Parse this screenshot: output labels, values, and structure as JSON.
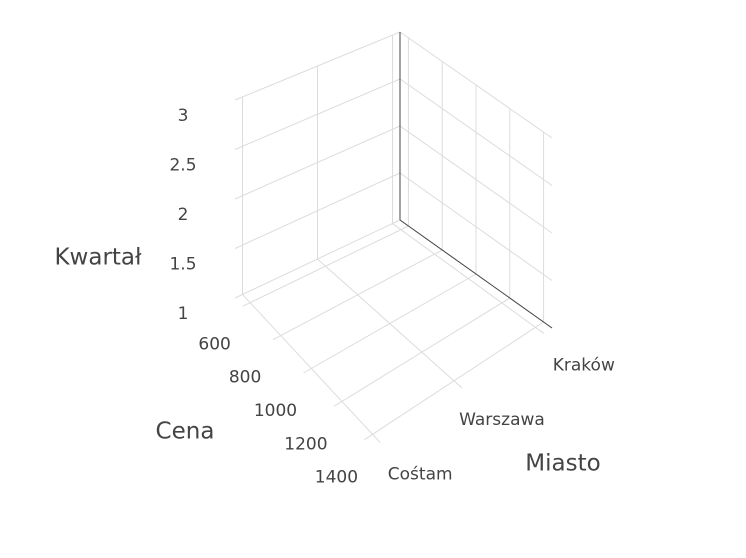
{
  "chart_data": {
    "type": "scatter3d",
    "x_title": "Miasto",
    "y_title": "Cena",
    "z_title": "Kwartał",
    "categories": [
      "Cośtam",
      "Warszawa",
      "Kraków"
    ],
    "xlim": [
      -0.1,
      2.1
    ],
    "ylim": [
      550,
      1450
    ],
    "yticks": [
      600,
      800,
      1000,
      1200,
      1400
    ],
    "zlim": [
      1,
      3
    ],
    "zticks": [
      1,
      1.5,
      2,
      2.5,
      3
    ],
    "grid": true
  }
}
